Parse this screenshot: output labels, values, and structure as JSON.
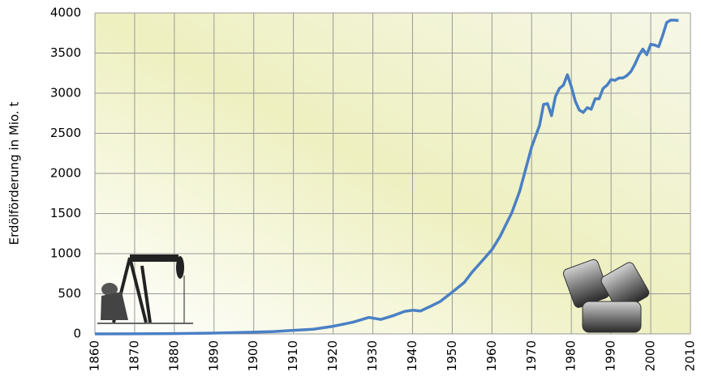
{
  "chart_data": {
    "type": "line",
    "y_label": "Erdölförderung in Mio. t",
    "x": [
      1860,
      1870,
      1880,
      1890,
      1900,
      1905,
      1910,
      1915,
      1920,
      1925,
      1929,
      1932,
      1935,
      1938,
      1940,
      1942,
      1945,
      1947,
      1950,
      1953,
      1955,
      1957,
      1960,
      1962,
      1965,
      1967,
      1970,
      1972,
      1973,
      1974,
      1975,
      1976,
      1977,
      1978,
      1979,
      1980,
      1981,
      1982,
      1983,
      1984,
      1985,
      1986,
      1987,
      1988,
      1989,
      1990,
      1991,
      1992,
      1993,
      1994,
      1995,
      1996,
      1997,
      1998,
      1999,
      2000,
      2001,
      2002,
      2003,
      2004,
      2005,
      2006,
      2007
    ],
    "series": [
      {
        "color": "#4a80c4",
        "values": [
          0,
          1,
          4,
          10,
          21,
          29,
          44,
          58,
          95,
          146,
          205,
          180,
          225,
          280,
          295,
          285,
          355,
          405,
          520,
          640,
          770,
          880,
          1050,
          1210,
          1510,
          1780,
          2330,
          2600,
          2860,
          2870,
          2720,
          2960,
          3060,
          3100,
          3230,
          3080,
          2900,
          2790,
          2760,
          2820,
          2800,
          2930,
          2930,
          3060,
          3100,
          3170,
          3160,
          3190,
          3190,
          3220,
          3270,
          3360,
          3470,
          3550,
          3480,
          3610,
          3600,
          3580,
          3720,
          3880,
          3910,
          3910,
          3905
        ]
      }
    ],
    "xlim": [
      1860,
      2010
    ],
    "xticks": [
      1860,
      1870,
      1880,
      1890,
      1900,
      1910,
      1920,
      1930,
      1940,
      1950,
      1960,
      1970,
      1980,
      1990,
      2000,
      2010
    ],
    "ylim": [
      0,
      4000
    ],
    "yticks": [
      0,
      500,
      1000,
      1500,
      2000,
      2500,
      3000,
      3500,
      4000
    ],
    "grid": true
  }
}
